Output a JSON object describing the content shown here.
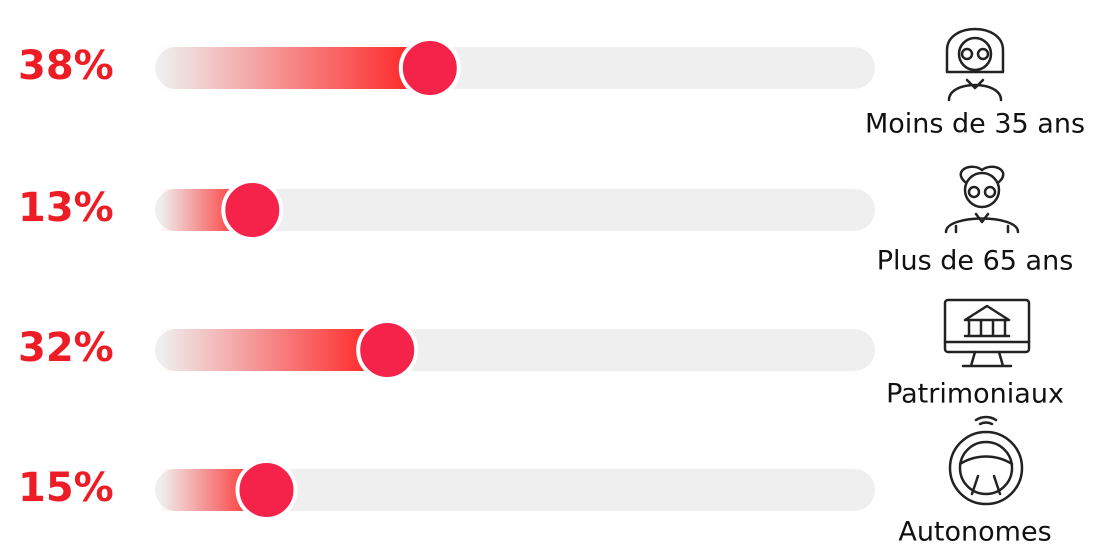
{
  "chart_data": {
    "type": "slider",
    "categories": [
      "Moins de 35 ans",
      "Plus de 65 ans",
      "Patrimoniaux",
      "Autonomes"
    ],
    "values": [
      38,
      13,
      32,
      15
    ],
    "value_labels": [
      "38%",
      "13%",
      "32%",
      "15%"
    ],
    "color": "#f5234a",
    "xlim": [
      0,
      100
    ]
  }
}
